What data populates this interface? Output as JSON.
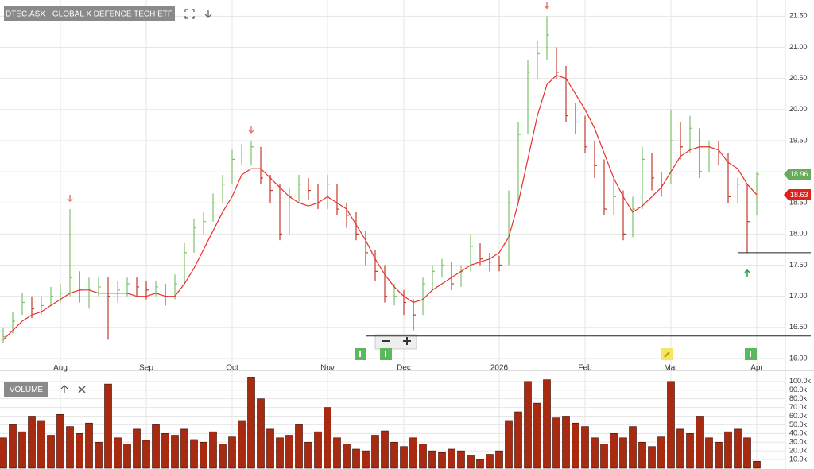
{
  "chart_data": [
    {
      "type": "ohlc",
      "title": "DTEC.ASX - GLOBAL X DEFENCE TECH ETF",
      "categories": [
        null,
        null,
        null,
        null,
        null,
        null,
        "Aug",
        null,
        null,
        null,
        null,
        null,
        null,
        null,
        null,
        "Sep",
        null,
        null,
        null,
        null,
        null,
        null,
        null,
        null,
        "Oct",
        null,
        null,
        null,
        null,
        null,
        null,
        null,
        null,
        null,
        "Nov",
        null,
        null,
        null,
        null,
        null,
        null,
        null,
        "Dec",
        null,
        null,
        null,
        null,
        null,
        null,
        null,
        null,
        null,
        "2026",
        null,
        null,
        null,
        null,
        null,
        null,
        null,
        null,
        "Feb",
        null,
        null,
        null,
        null,
        null,
        null,
        null,
        null,
        "Mar",
        null,
        null,
        null,
        null,
        null,
        null,
        null,
        null,
        "Apr"
      ],
      "high": [
        16.5,
        16.75,
        17.05,
        17.0,
        17.0,
        17.15,
        17.2,
        18.4,
        17.4,
        17.3,
        17.3,
        17.3,
        17.25,
        17.3,
        17.3,
        17.25,
        17.25,
        17.2,
        17.35,
        17.85,
        18.25,
        18.35,
        18.65,
        18.95,
        19.35,
        19.45,
        19.5,
        19.4,
        18.95,
        18.8,
        18.75,
        18.95,
        18.9,
        18.8,
        18.95,
        18.8,
        18.5,
        18.35,
        18.05,
        17.75,
        17.5,
        17.2,
        17.1,
        16.95,
        17.3,
        17.5,
        17.6,
        17.55,
        17.5,
        18.0,
        17.85,
        17.7,
        17.65,
        18.7,
        19.8,
        20.8,
        21.1,
        21.5,
        21.0,
        20.7,
        20.1,
        19.9,
        19.5,
        19.2,
        18.9,
        18.7,
        18.6,
        19.4,
        19.3,
        19.0,
        20.0,
        19.8,
        19.9,
        19.7,
        19.5,
        19.5,
        19.3,
        18.9,
        18.8,
        19.0
      ],
      "low": [
        16.25,
        16.4,
        16.7,
        16.65,
        16.7,
        16.85,
        16.9,
        17.0,
        16.9,
        16.8,
        17.0,
        16.3,
        16.9,
        17.0,
        17.0,
        16.95,
        17.0,
        16.85,
        16.95,
        17.2,
        17.7,
        18.0,
        18.2,
        18.5,
        18.8,
        19.1,
        19.1,
        18.8,
        18.5,
        17.9,
        18.0,
        18.5,
        18.55,
        18.4,
        18.4,
        18.3,
        18.1,
        17.9,
        17.5,
        17.25,
        16.9,
        16.85,
        16.7,
        16.45,
        16.7,
        17.1,
        17.3,
        17.1,
        17.15,
        17.4,
        17.5,
        17.4,
        17.4,
        17.5,
        18.5,
        19.6,
        20.5,
        20.8,
        20.5,
        19.8,
        19.6,
        19.3,
        18.9,
        18.3,
        18.3,
        17.9,
        17.95,
        18.4,
        18.7,
        18.6,
        18.8,
        19.2,
        19.3,
        18.9,
        19.0,
        19.1,
        18.5,
        18.5,
        17.7,
        18.3
      ],
      "close": [
        16.35,
        16.6,
        16.9,
        16.8,
        16.85,
        17.0,
        17.05,
        17.3,
        17.1,
        17.1,
        17.15,
        17.0,
        17.1,
        17.2,
        17.15,
        17.1,
        17.15,
        17.0,
        17.2,
        17.7,
        18.1,
        18.2,
        18.5,
        18.8,
        19.2,
        19.3,
        19.4,
        18.9,
        18.7,
        18.0,
        18.6,
        18.8,
        18.7,
        18.5,
        18.8,
        18.4,
        18.3,
        18.0,
        17.7,
        17.4,
        17.0,
        17.0,
        16.9,
        16.7,
        17.2,
        17.4,
        17.5,
        17.2,
        17.4,
        17.8,
        17.6,
        17.55,
        17.5,
        18.5,
        19.6,
        20.6,
        20.9,
        21.2,
        20.6,
        19.9,
        19.8,
        19.4,
        19.1,
        18.4,
        18.6,
        18.0,
        18.4,
        19.2,
        18.9,
        18.8,
        19.5,
        19.4,
        19.7,
        19.0,
        19.4,
        19.3,
        18.6,
        18.8,
        18.2,
        18.96
      ],
      "ma": [
        16.3,
        16.45,
        16.6,
        16.7,
        16.75,
        16.85,
        16.95,
        17.05,
        17.1,
        17.1,
        17.05,
        17.05,
        17.05,
        17.05,
        17.0,
        17.0,
        17.05,
        17.0,
        17.0,
        17.2,
        17.45,
        17.75,
        18.05,
        18.35,
        18.6,
        18.95,
        19.05,
        19.05,
        18.9,
        18.75,
        18.6,
        18.5,
        18.45,
        18.5,
        18.6,
        18.5,
        18.4,
        18.15,
        17.9,
        17.6,
        17.35,
        17.15,
        17.0,
        16.9,
        16.95,
        17.1,
        17.2,
        17.3,
        17.4,
        17.5,
        17.55,
        17.6,
        17.7,
        17.95,
        18.5,
        19.2,
        19.9,
        20.4,
        20.55,
        20.5,
        20.25,
        20.0,
        19.7,
        19.3,
        18.9,
        18.6,
        18.35,
        18.45,
        18.6,
        18.75,
        19.0,
        19.25,
        19.35,
        19.4,
        19.4,
        19.35,
        19.15,
        19.05,
        18.8,
        18.63
      ],
      "up_color": "#7cc06a",
      "down_color": "#c0392b",
      "ma_color": "#e8302a",
      "ylim": [
        15.91,
        21.76
      ],
      "yticks": [
        {
          "value": 16,
          "label": "16.00"
        },
        {
          "value": 16.5,
          "label": "16.50"
        },
        {
          "value": 17,
          "label": "17.00"
        },
        {
          "value": 17.5,
          "label": "17.50"
        },
        {
          "value": 18,
          "label": "18.00"
        },
        {
          "value": 18.5,
          "label": "18.50"
        },
        {
          "value": 19,
          "label": "19.00"
        },
        {
          "value": 19.5,
          "label": "19.50"
        },
        {
          "value": 20,
          "label": "20.00"
        },
        {
          "value": 20.5,
          "label": "20.50"
        },
        {
          "value": 21,
          "label": "21.00"
        },
        {
          "value": 21.5,
          "label": "21.50"
        }
      ],
      "grid": true,
      "last_labels": [
        {
          "value": 18.96,
          "label": "18.96",
          "color": "#6aaa5c"
        },
        {
          "value": 18.63,
          "label": "18.63",
          "color": "#e0201b"
        }
      ],
      "hlines": [
        {
          "value": 16.36,
          "from": 38
        },
        {
          "value": 17.7,
          "from": 77
        }
      ],
      "signals": [
        {
          "index": 7,
          "dir": "down"
        },
        {
          "index": 26,
          "dir": "down"
        },
        {
          "index": 57,
          "dir": "down"
        },
        {
          "index": 78,
          "dir": "up"
        }
      ]
    },
    {
      "type": "bar",
      "title": "VOLUME",
      "color": "#a82a10",
      "values": [
        35000,
        50000,
        42000,
        60000,
        55000,
        38000,
        62000,
        48000,
        40000,
        52000,
        30000,
        97000,
        35000,
        28000,
        45000,
        32000,
        50000,
        40000,
        38000,
        45000,
        33000,
        30000,
        42000,
        28000,
        36000,
        55000,
        105000,
        80000,
        45000,
        35000,
        38000,
        50000,
        30000,
        42000,
        70000,
        35000,
        28000,
        22000,
        20000,
        38000,
        43000,
        30000,
        25000,
        35000,
        28000,
        20000,
        18000,
        22000,
        20000,
        15000,
        10000,
        16000,
        20000,
        55000,
        65000,
        100000,
        75000,
        102000,
        58000,
        60000,
        52000,
        48000,
        35000,
        28000,
        40000,
        35000,
        48000,
        30000,
        25000,
        36000,
        100000,
        45000,
        40000,
        60000,
        35000,
        30000,
        42000,
        45000,
        35000,
        8000
      ],
      "ylim": [
        0,
        109000
      ],
      "yticks": [
        {
          "value": 10000,
          "label": "10.0k"
        },
        {
          "value": 20000,
          "label": "20.0k"
        },
        {
          "value": 30000,
          "label": "30.0k"
        },
        {
          "value": 40000,
          "label": "40.0k"
        },
        {
          "value": 50000,
          "label": "50.0k"
        },
        {
          "value": 60000,
          "label": "60.0k"
        },
        {
          "value": 70000,
          "label": "70.0k"
        },
        {
          "value": 80000,
          "label": "80.0k"
        },
        {
          "value": 90000,
          "label": "90.0k"
        },
        {
          "value": 100000,
          "label": "100.0k"
        }
      ]
    }
  ]
}
